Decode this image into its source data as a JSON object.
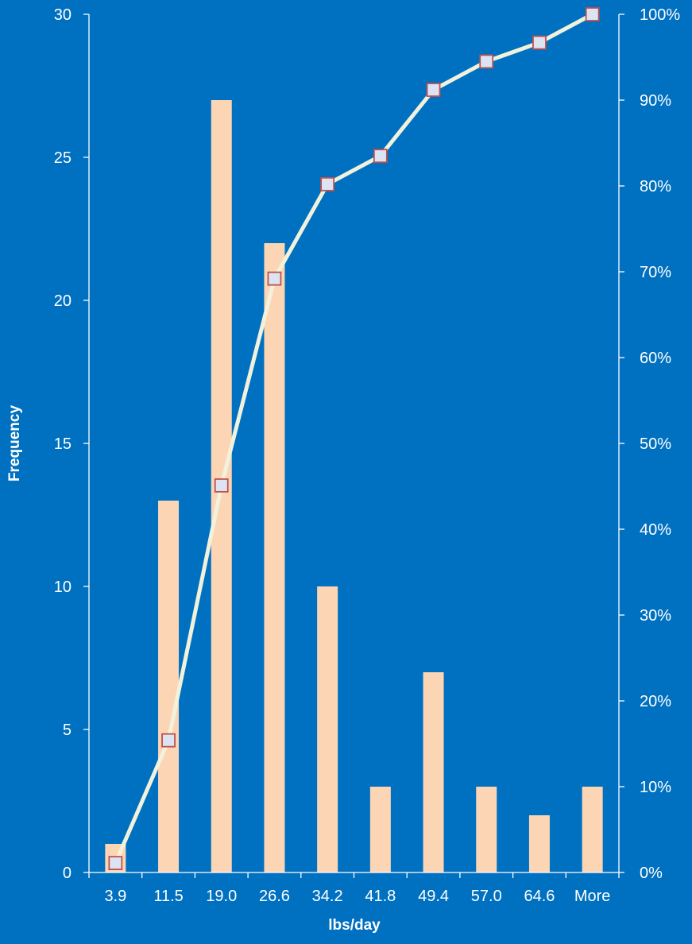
{
  "colors": {
    "background": "#0070C0",
    "bar": "#FCD5B5",
    "line": "#F2F2DC",
    "marker_fill": "#DCE3F2",
    "marker_stroke": "#C0504D",
    "axis": "#FFFFFF"
  },
  "chart_data": {
    "type": "bar",
    "combo_line": "cumulative percentage",
    "categories": [
      "3.9",
      "11.5",
      "19.0",
      "26.6",
      "34.2",
      "41.8",
      "49.4",
      "57.0",
      "64.6",
      "More"
    ],
    "series": [
      {
        "type": "bar",
        "axis": "left",
        "values": [
          1,
          13,
          27,
          22,
          10,
          3,
          7,
          3,
          2,
          3
        ]
      },
      {
        "type": "line",
        "axis": "right",
        "values": [
          1.1,
          15.4,
          45.1,
          69.2,
          80.2,
          83.5,
          91.2,
          94.5,
          96.7,
          100
        ]
      }
    ],
    "xlabel": "lbs/day",
    "ylabel": "Frequency",
    "ylim": [
      0,
      30
    ],
    "yticks": [
      "0",
      "5",
      "10",
      "15",
      "20",
      "25",
      "30"
    ],
    "y2lim": [
      0,
      100
    ],
    "y2ticks": [
      "0%",
      "10%",
      "20%",
      "30%",
      "40%",
      "50%",
      "60%",
      "70%",
      "80%",
      "90%",
      "100%"
    ],
    "grid": false,
    "legend": "none"
  }
}
